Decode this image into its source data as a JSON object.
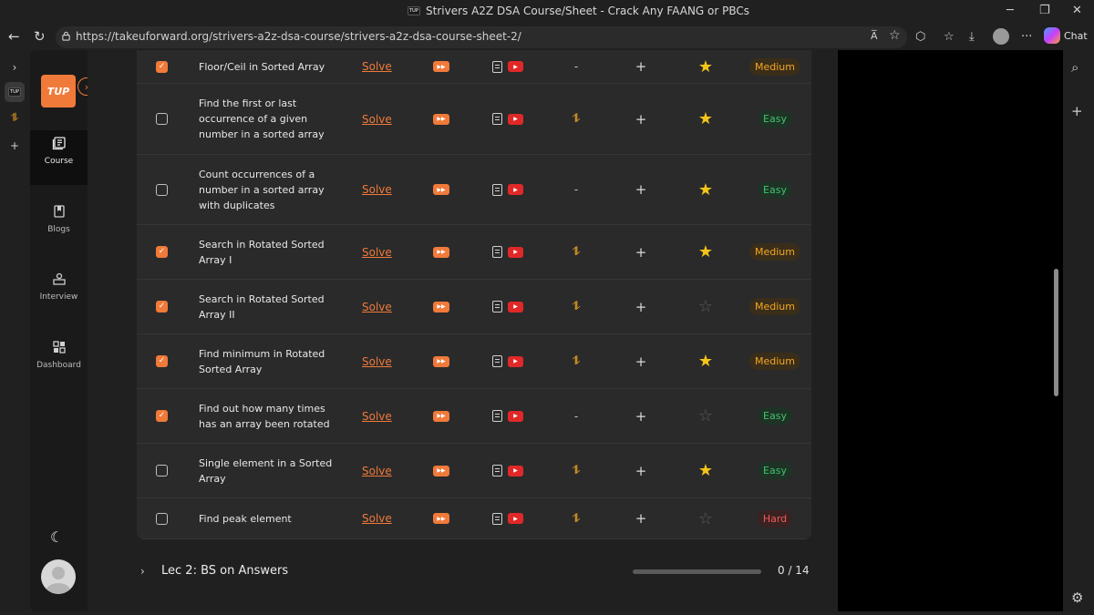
{
  "window": {
    "title": "Strivers A2Z DSA Course/Sheet - Crack Any FAANG or PBCs",
    "favicon_text": "TUP"
  },
  "browser": {
    "url": "https://takeuforward.org/strivers-a2z-dsa-course/strivers-a2z-dsa-course-sheet-2/",
    "read_aloud_label": "A̅",
    "chat_label": "Chat",
    "more_label": "···"
  },
  "sidebar": {
    "logo": "TUP",
    "items": [
      {
        "label": "Course",
        "icon": "book-open-icon",
        "active": true
      },
      {
        "label": "Blogs",
        "icon": "bookmark-icon",
        "active": false
      },
      {
        "label": "Interview",
        "icon": "interview-icon",
        "active": false
      },
      {
        "label": "Dashboard",
        "icon": "dashboard-icon",
        "active": false
      }
    ]
  },
  "problems": [
    {
      "name": "Floor/Ceil in Sorted Array",
      "done": true,
      "solve": "Solve",
      "practice": "-",
      "plus": "+",
      "starred": true,
      "difficulty": "Medium"
    },
    {
      "name": "Find the first or last occurrence of a given number in a sorted array",
      "done": false,
      "solve": "Solve",
      "practice": "lc",
      "plus": "+",
      "starred": true,
      "difficulty": "Easy"
    },
    {
      "name": "Count occurrences of a number in a sorted array with duplicates",
      "done": false,
      "solve": "Solve",
      "practice": "-",
      "plus": "+",
      "starred": true,
      "difficulty": "Easy"
    },
    {
      "name": "Search in Rotated Sorted Array I",
      "done": true,
      "solve": "Solve",
      "practice": "lc",
      "plus": "+",
      "starred": true,
      "difficulty": "Medium"
    },
    {
      "name": "Search in Rotated Sorted Array II",
      "done": true,
      "solve": "Solve",
      "practice": "lc",
      "plus": "+",
      "starred": false,
      "difficulty": "Medium"
    },
    {
      "name": "Find minimum in Rotated Sorted Array",
      "done": true,
      "solve": "Solve",
      "practice": "lc",
      "plus": "+",
      "starred": true,
      "difficulty": "Medium"
    },
    {
      "name": "Find out how many times has an array been rotated",
      "done": true,
      "solve": "Solve",
      "practice": "-",
      "plus": "+",
      "starred": false,
      "difficulty": "Easy"
    },
    {
      "name": "Single element in a Sorted Array",
      "done": false,
      "solve": "Solve",
      "practice": "lc",
      "plus": "+",
      "starred": true,
      "difficulty": "Easy"
    },
    {
      "name": "Find peak element",
      "done": false,
      "solve": "Solve",
      "practice": "lc",
      "plus": "+",
      "starred": false,
      "difficulty": "Hard"
    }
  ],
  "next_lecture": {
    "title": "Lec 2: BS on Answers",
    "progress": "0 / 14",
    "progress_fraction": 0
  },
  "colors": {
    "accent": "#f07a3a",
    "star": "#f5c518",
    "easy": "#3ec46d",
    "medium": "#f5a623",
    "hard": "#ef5b5b",
    "youtube": "#e02828"
  }
}
